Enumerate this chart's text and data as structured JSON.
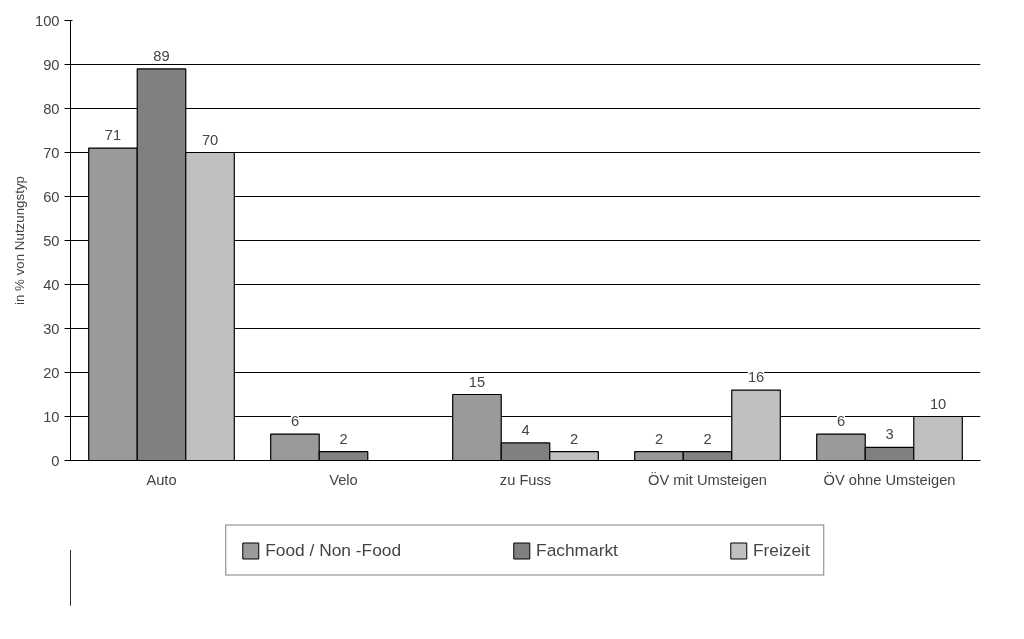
{
  "chart_data": {
    "type": "bar",
    "ylabel": "in % von Nutzungstyp",
    "categories": [
      "Auto",
      "Velo",
      "zu Fuss",
      "ÖV mit Umsteigen",
      "ÖV ohne Umsteigen"
    ],
    "series": [
      {
        "name": "Food / Non -Food",
        "color": "#9a9a9a",
        "values": [
          71,
          6,
          15,
          2,
          6
        ],
        "value_labels": [
          "71",
          "6",
          "15",
          "2",
          "6"
        ]
      },
      {
        "name": "Fachmarkt",
        "color": "#808080",
        "values": [
          89,
          2,
          4,
          2,
          3
        ],
        "value_labels": [
          "89",
          "2",
          "4",
          "2",
          "3"
        ]
      },
      {
        "name": "Freizeit",
        "color": "#c0c0c0",
        "values": [
          70,
          0,
          2,
          16,
          10
        ],
        "value_labels": [
          "70",
          null,
          "2",
          "16",
          "10"
        ]
      }
    ],
    "ylim": [
      0,
      100
    ],
    "yticks": [
      0,
      10,
      20,
      30,
      40,
      50,
      60,
      70,
      80,
      90,
      100
    ],
    "grid": "y",
    "legend": "bottom"
  }
}
